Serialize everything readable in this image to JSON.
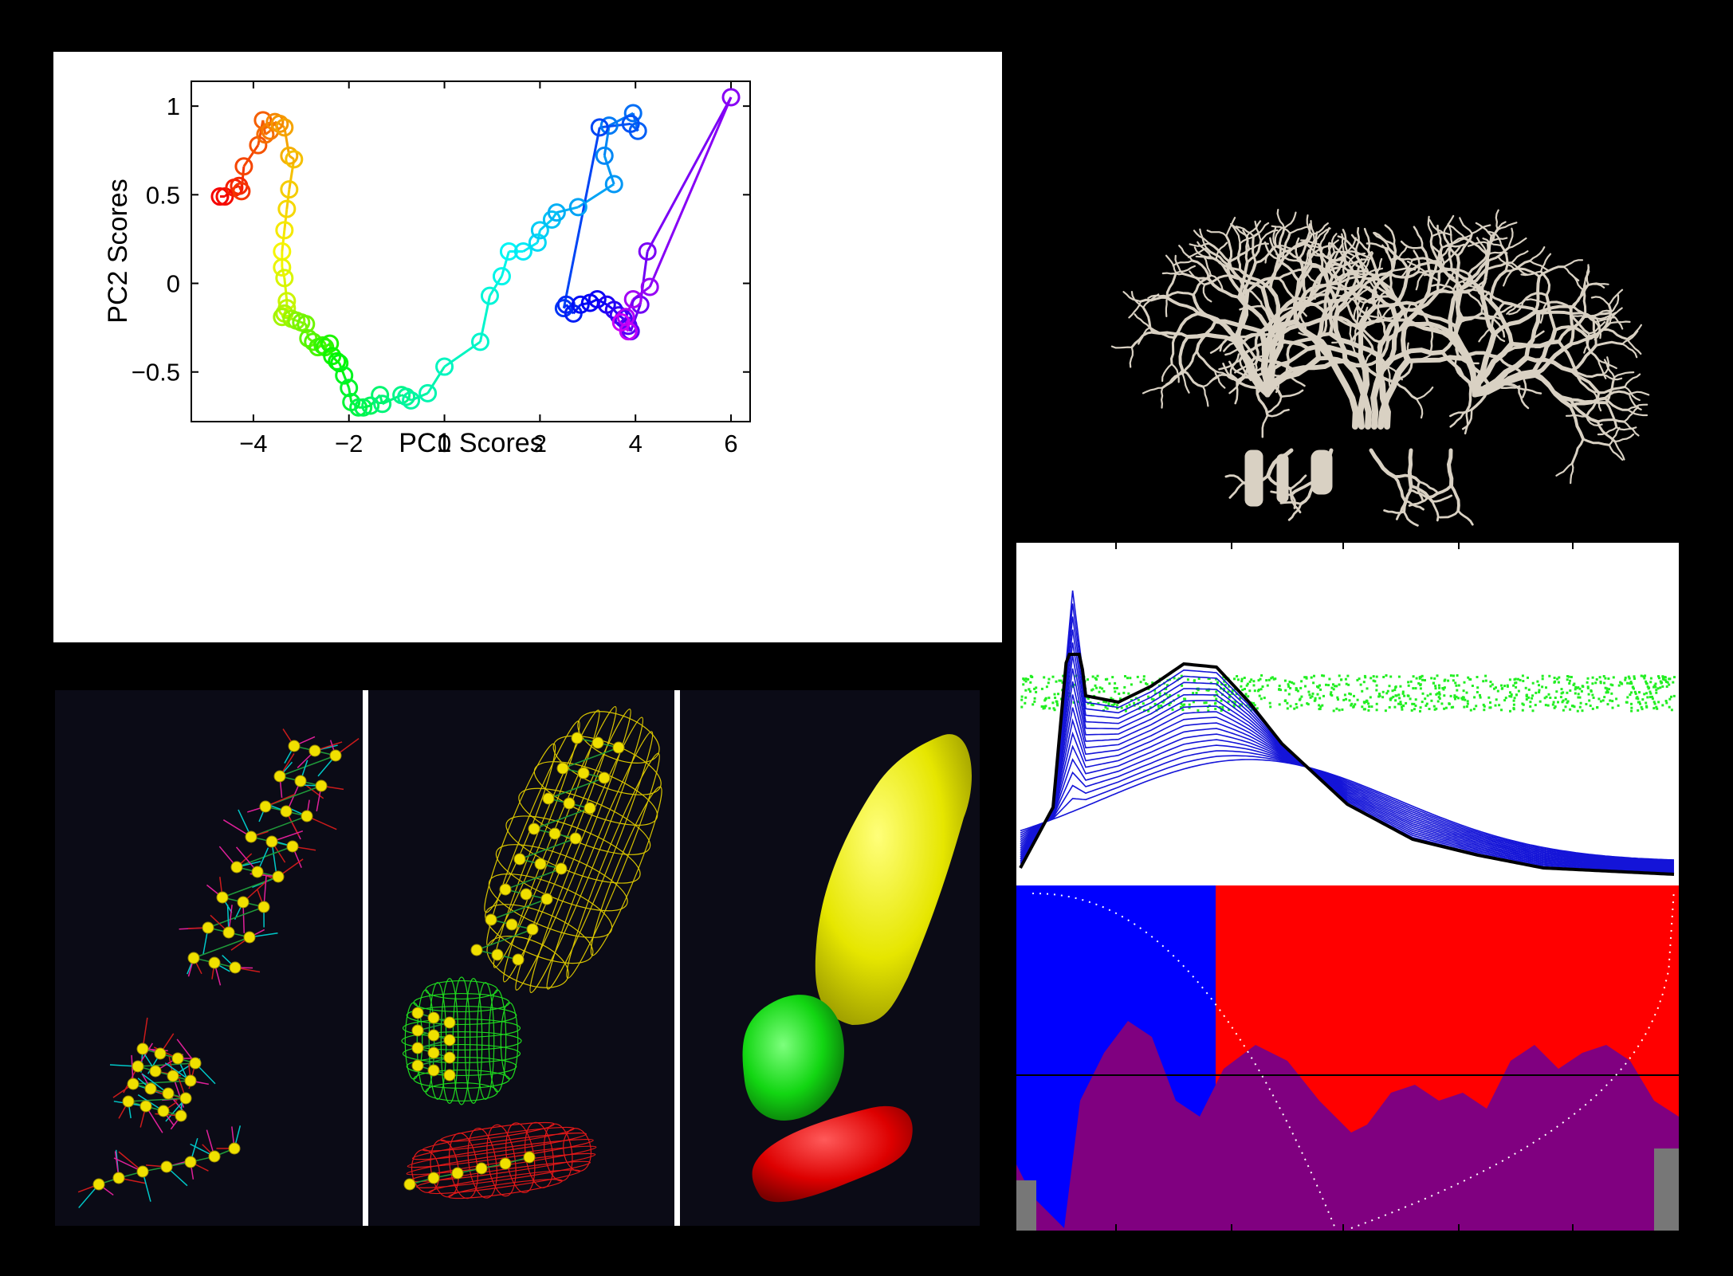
{
  "chart_data": [
    {
      "type": "scatter",
      "title": "",
      "xlabel": "PC1 Scores",
      "ylabel": "PC2 Scores",
      "xlim": [
        -5.3,
        6.4
      ],
      "ylim": [
        -0.78,
        1.14
      ],
      "x_ticks": [
        -4,
        -2,
        0,
        2,
        4,
        6
      ],
      "y_ticks": [
        -0.5,
        0,
        0.5,
        1
      ],
      "x_tick_labels": [
        "−4",
        "−2",
        "0",
        "2",
        "4",
        "6"
      ],
      "y_tick_labels": [
        "−0.5",
        "0",
        "0.5",
        "1"
      ],
      "marker": "open-circle",
      "connected": true,
      "color_map": "hue-gradient red-to-magenta",
      "grid": false,
      "legend": "none",
      "series": [
        {
          "x": [
            -4.7,
            -4.6,
            -4.4,
            -4.3,
            -4.25,
            -4.2,
            -3.9,
            -3.8,
            -3.75,
            -3.65,
            -3.55,
            -3.45,
            -3.35,
            -3.25,
            -3.15,
            -3.25,
            -3.3,
            -3.35,
            -3.4,
            -3.4,
            -3.35,
            -3.3,
            -3.3,
            -3.35,
            -3.4,
            -3.2,
            -3.1,
            -3.0,
            -2.9,
            -2.85,
            -2.75,
            -2.65,
            -2.55,
            -2.5,
            -2.4,
            -2.35,
            -2.25,
            -2.2,
            -2.1,
            -2.0,
            -1.95,
            -1.8,
            -1.7,
            -1.55,
            -1.35,
            -1.3,
            -0.9,
            -0.8,
            -0.7,
            -0.35,
            0.0,
            0.75,
            0.95,
            1.2,
            1.35,
            1.65,
            1.95,
            2.0,
            2.25,
            2.35,
            2.8,
            3.55,
            3.35,
            3.45,
            3.95,
            4.05,
            3.9,
            3.25,
            2.5,
            2.55,
            2.7,
            2.85,
            3.05,
            3.2,
            3.4,
            3.55,
            3.65,
            3.75,
            3.85,
            3.9,
            4.1,
            4.25,
            6.0,
            4.3,
            3.95,
            3.8,
            3.85,
            3.7
          ],
          "y": [
            0.49,
            0.49,
            0.54,
            0.55,
            0.52,
            0.66,
            0.78,
            0.92,
            0.84,
            0.86,
            0.91,
            0.9,
            0.88,
            0.72,
            0.7,
            0.53,
            0.42,
            0.3,
            0.18,
            0.09,
            0.03,
            -0.1,
            -0.14,
            -0.17,
            -0.19,
            -0.2,
            -0.21,
            -0.22,
            -0.23,
            -0.31,
            -0.33,
            -0.36,
            -0.35,
            -0.36,
            -0.34,
            -0.41,
            -0.44,
            -0.45,
            -0.52,
            -0.59,
            -0.67,
            -0.7,
            -0.7,
            -0.69,
            -0.63,
            -0.68,
            -0.63,
            -0.64,
            -0.66,
            -0.62,
            -0.47,
            -0.33,
            -0.07,
            0.04,
            0.18,
            0.18,
            0.23,
            0.3,
            0.36,
            0.4,
            0.43,
            0.56,
            0.72,
            0.89,
            0.96,
            0.86,
            0.9,
            0.88,
            -0.14,
            -0.12,
            -0.17,
            -0.12,
            -0.11,
            -0.09,
            -0.12,
            -0.15,
            -0.18,
            -0.2,
            -0.24,
            -0.27,
            -0.12,
            0.18,
            1.05,
            -0.02,
            -0.09,
            -0.19,
            -0.27,
            -0.22
          ]
        }
      ]
    },
    {
      "type": "area",
      "title": "",
      "xlabel": "",
      "ylabel": "",
      "x_tick_labels": [],
      "y_tick_labels": [],
      "x": [
        0,
        0.05,
        0.08,
        0.1,
        0.15,
        0.2,
        0.25,
        0.3,
        0.35,
        0.4,
        0.5,
        0.6,
        0.7,
        0.8,
        0.9,
        1.0
      ],
      "series": [
        {
          "values": [
            0.03,
            0.22,
            0.9,
            0.57,
            0.55,
            0.6,
            0.67,
            0.66,
            0.55,
            0.42,
            0.23,
            0.12,
            0.07,
            0.03,
            0.02,
            0.01
          ]
        }
      ]
    }
  ]
}
